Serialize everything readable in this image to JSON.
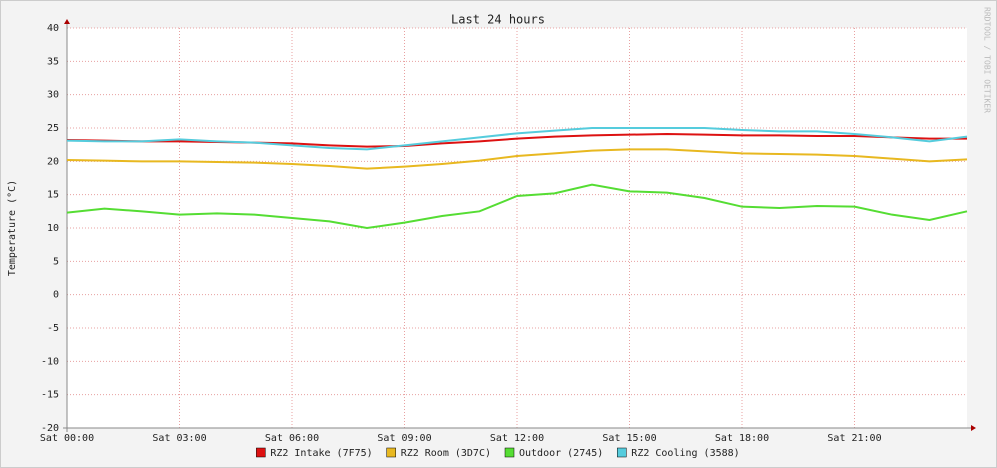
{
  "chart_data": {
    "type": "line",
    "title": "Last 24 hours",
    "y_label": "Temperature (°C)",
    "watermark": "RRDTOOL / TOBI OETIKER",
    "x": [
      0,
      1,
      2,
      3,
      4,
      5,
      6,
      7,
      8,
      9,
      10,
      11,
      12,
      13,
      14,
      15,
      16,
      17,
      18,
      19,
      20,
      21,
      22,
      23,
      24
    ],
    "xlim": [
      0,
      24
    ],
    "xticks": [
      {
        "value": 0,
        "label": "Sat 00:00"
      },
      {
        "value": 3,
        "label": "Sat 03:00"
      },
      {
        "value": 6,
        "label": "Sat 06:00"
      },
      {
        "value": 9,
        "label": "Sat 09:00"
      },
      {
        "value": 12,
        "label": "Sat 12:00"
      },
      {
        "value": 15,
        "label": "Sat 15:00"
      },
      {
        "value": 18,
        "label": "Sat 18:00"
      },
      {
        "value": 21,
        "label": "Sat 21:00"
      }
    ],
    "ylim": [
      -20,
      40
    ],
    "yticks": [
      -20,
      -15,
      -10,
      -5,
      0,
      5,
      10,
      15,
      20,
      25,
      30,
      35,
      40
    ],
    "grid": true,
    "legend": "bottom",
    "series": [
      {
        "name": "RZ2 Intake (7F75)",
        "color": "#dd1111",
        "values": [
          23.2,
          23.1,
          23,
          23,
          22.9,
          22.8,
          22.7,
          22.4,
          22.2,
          22.3,
          22.7,
          23,
          23.4,
          23.7,
          23.9,
          24,
          24.1,
          24,
          23.9,
          23.9,
          23.8,
          23.8,
          23.6,
          23.4,
          23.4
        ]
      },
      {
        "name": "RZ2 Room (3D7C)",
        "color": "#e8b820",
        "values": [
          20.2,
          20.1,
          20,
          20,
          19.9,
          19.8,
          19.6,
          19.3,
          18.9,
          19.2,
          19.6,
          20.1,
          20.8,
          21.2,
          21.6,
          21.8,
          21.8,
          21.5,
          21.2,
          21.1,
          21,
          20.8,
          20.4,
          20,
          20.3
        ]
      },
      {
        "name": "Outdoor (2745)",
        "color": "#55dd33",
        "values": [
          12.3,
          12.9,
          12.5,
          12,
          12.2,
          12,
          11.5,
          11,
          10,
          10.8,
          11.8,
          12.5,
          14.8,
          15.2,
          16.5,
          15.5,
          15.3,
          14.5,
          13.2,
          13,
          13.3,
          13.2,
          12,
          11.2,
          12.5
        ]
      },
      {
        "name": "RZ2 Cooling (3588)",
        "color": "#55ccdd",
        "values": [
          23.1,
          23,
          23,
          23.3,
          23,
          22.8,
          22.4,
          22,
          21.8,
          22.4,
          23,
          23.6,
          24.2,
          24.6,
          25,
          25,
          25,
          25,
          24.7,
          24.5,
          24.5,
          24.1,
          23.6,
          23,
          23.7
        ]
      }
    ]
  }
}
